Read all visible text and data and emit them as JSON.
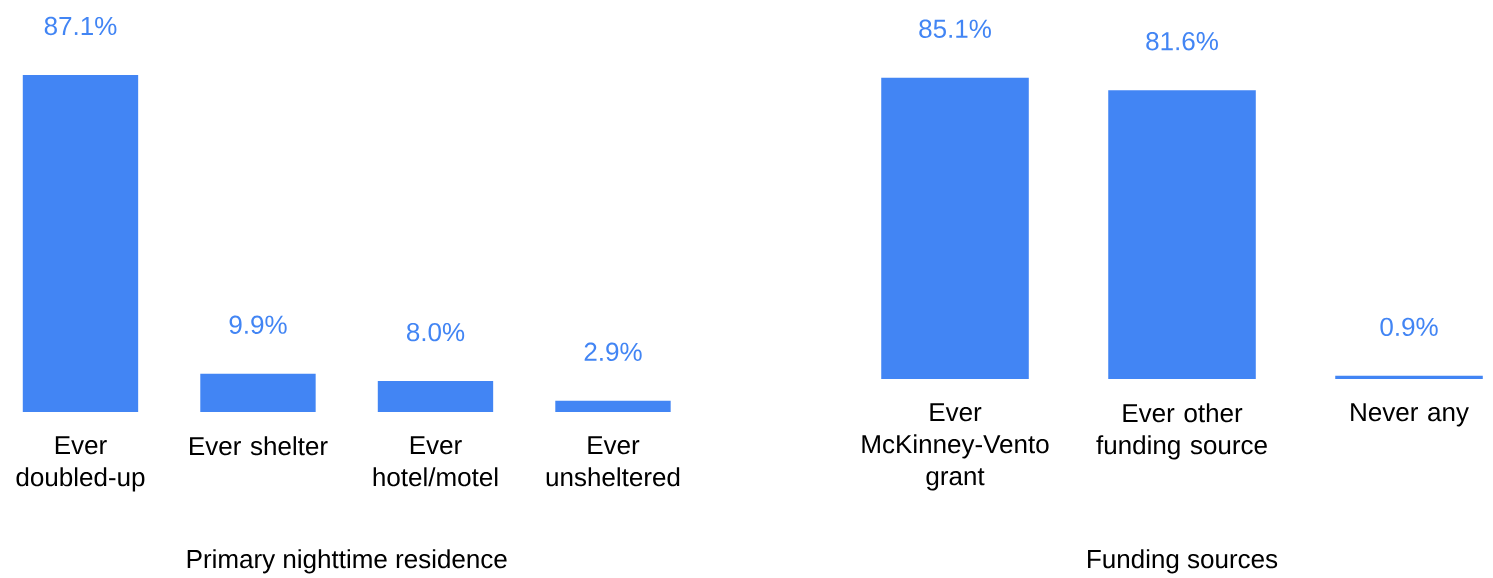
{
  "chart_data": [
    {
      "type": "bar",
      "xlabel": "Primary nighttime residence",
      "categories": [
        "Ever doubled-up",
        "Ever shelter",
        "Ever hotel/motel",
        "Ever unsheltered"
      ],
      "values": [
        87.1,
        9.9,
        8.0,
        2.9
      ],
      "value_labels": [
        "87.1%",
        "9.9%",
        "8.0%",
        "2.9%"
      ],
      "color": "#4285f4",
      "tick_labels": "x"
    },
    {
      "type": "bar",
      "xlabel": "Funding sources",
      "categories": [
        "Ever McKinney-Vento grant",
        "Ever other funding source",
        "Never any"
      ],
      "values": [
        85.1,
        81.6,
        0.9
      ],
      "value_labels": [
        "85.1%",
        "81.6%",
        "0.9%"
      ],
      "color": "#4285f4",
      "tick_labels": "x"
    }
  ]
}
